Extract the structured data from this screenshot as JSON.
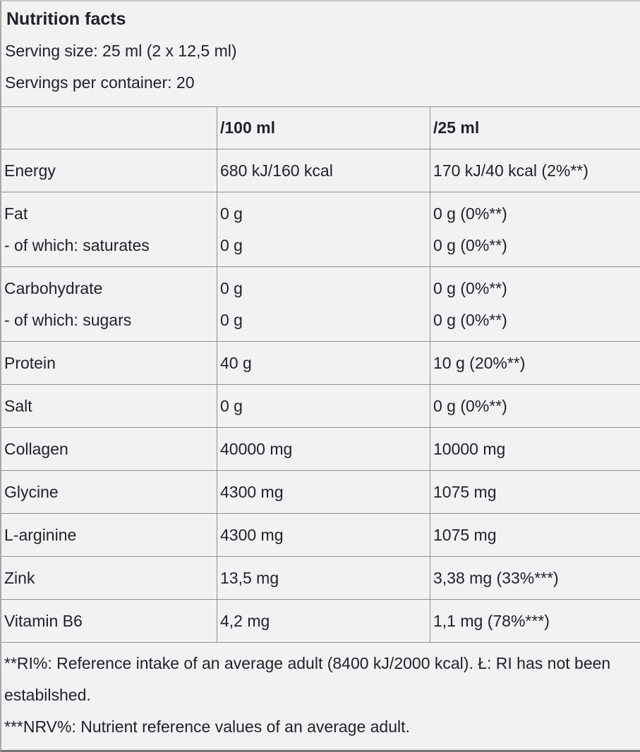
{
  "header": {
    "title": "Nutrition facts",
    "serving_size": "Serving size: 25 ml (2 x 12,5 ml)",
    "servings_per_container": "Servings per container: 20"
  },
  "table": {
    "columns": [
      "",
      "/100 ml",
      "/25 ml"
    ],
    "rows": [
      {
        "label": [
          "Energy"
        ],
        "per_100ml": [
          "680 kJ/160 kcal"
        ],
        "per_25ml": [
          "170 kJ/40 kcal (2%**)"
        ]
      },
      {
        "label": [
          "Fat",
          "- of which: saturates"
        ],
        "per_100ml": [
          "0 g",
          "0 g"
        ],
        "per_25ml": [
          "0 g (0%**)",
          "0 g (0%**)"
        ]
      },
      {
        "label": [
          "Carbohydrate",
          "- of which: sugars"
        ],
        "per_100ml": [
          "0 g",
          "0 g"
        ],
        "per_25ml": [
          "0 g (0%**)",
          "0 g (0%**)"
        ]
      },
      {
        "label": [
          "Protein"
        ],
        "per_100ml": [
          "40 g"
        ],
        "per_25ml": [
          "10 g (20%**)"
        ]
      },
      {
        "label": [
          "Salt"
        ],
        "per_100ml": [
          "0 g"
        ],
        "per_25ml": [
          "0 g (0%**)"
        ]
      },
      {
        "label": [
          "Collagen"
        ],
        "per_100ml": [
          "40000 mg"
        ],
        "per_25ml": [
          "10000 mg"
        ]
      },
      {
        "label": [
          "Glycine"
        ],
        "per_100ml": [
          "4300 mg"
        ],
        "per_25ml": [
          "1075 mg"
        ]
      },
      {
        "label": [
          "L-arginine"
        ],
        "per_100ml": [
          "4300 mg"
        ],
        "per_25ml": [
          "1075 mg"
        ]
      },
      {
        "label": [
          "Zink"
        ],
        "per_100ml": [
          "13,5 mg"
        ],
        "per_25ml": [
          "3,38 mg (33%***)"
        ]
      },
      {
        "label": [
          "Vitamin B6"
        ],
        "per_100ml": [
          "4,2 mg"
        ],
        "per_25ml": [
          "1,1 mg (78%***)"
        ]
      }
    ]
  },
  "footnotes": [
    "**RI%: Reference intake of an average adult (8400 kJ/2000 kcal). Ł: RI has not been estabilshed.",
    "***NRV%: Nutrient reference values of an average adult."
  ],
  "colors": {
    "background": "#f2f2f3",
    "text": "#21212b",
    "table_line": "#8f8f94",
    "outer_top": "#c9c9cd",
    "outer_left": "#a7a7ac",
    "outer_bottom": "#76767a"
  }
}
